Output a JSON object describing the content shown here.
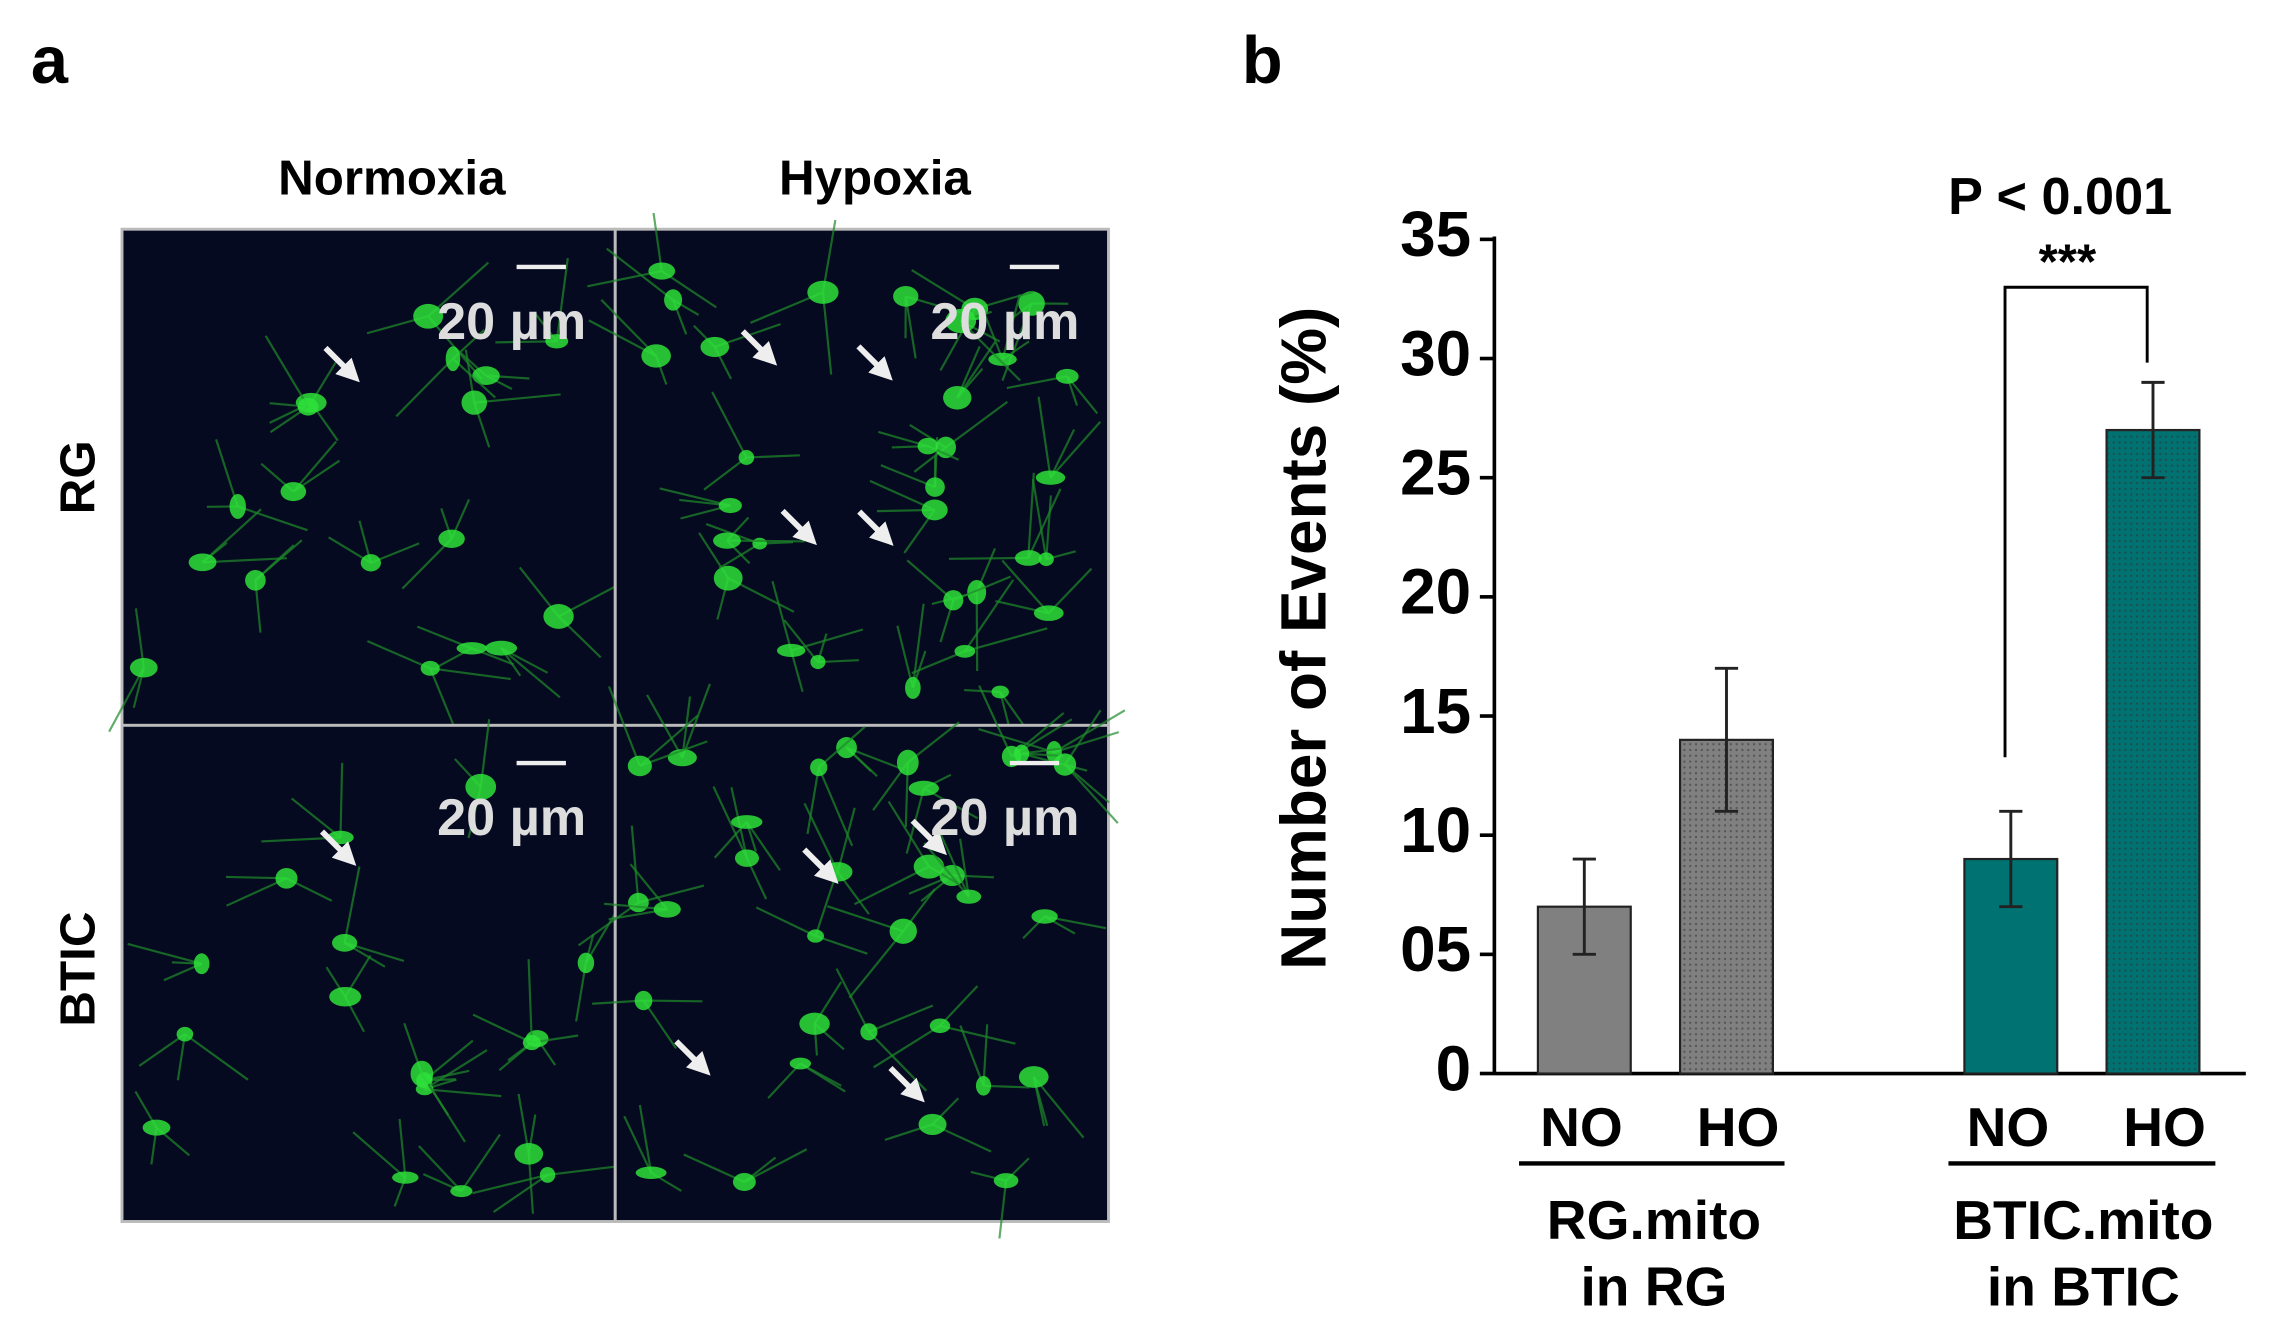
{
  "panel_a": {
    "label": "a",
    "columns": [
      "Normoxia",
      "Hypoxia"
    ],
    "rows": [
      "RG",
      "BTIC"
    ],
    "scale_bars": [
      "20 µm",
      "20 µm",
      "20 µm",
      "20 µm"
    ]
  },
  "panel_b": {
    "label": "b"
  },
  "chart_data": {
    "type": "bar",
    "y_label": "Number of Events (%)",
    "categories": [
      "NO",
      "HO",
      "NO",
      "HO"
    ],
    "values": [
      7,
      14,
      9,
      27
    ],
    "errors": [
      2,
      3,
      2,
      2
    ],
    "colors": [
      "#808080",
      "#808080",
      "#007272",
      "#007272"
    ],
    "patterns": [
      "solid",
      "dotted",
      "solid",
      "dotted"
    ],
    "groups": [
      {
        "lines": [
          "RG.mito",
          "in RG"
        ]
      },
      {
        "lines": [
          "BTIC.mito",
          "in BTIC"
        ]
      }
    ],
    "annotation": {
      "text": "P < 0.001",
      "stars": "***"
    },
    "ylim": [
      0,
      35
    ],
    "yticks": [
      0,
      {
        "value": 5,
        "label": "05"
      },
      10,
      15,
      20,
      25,
      30,
      35
    ]
  }
}
